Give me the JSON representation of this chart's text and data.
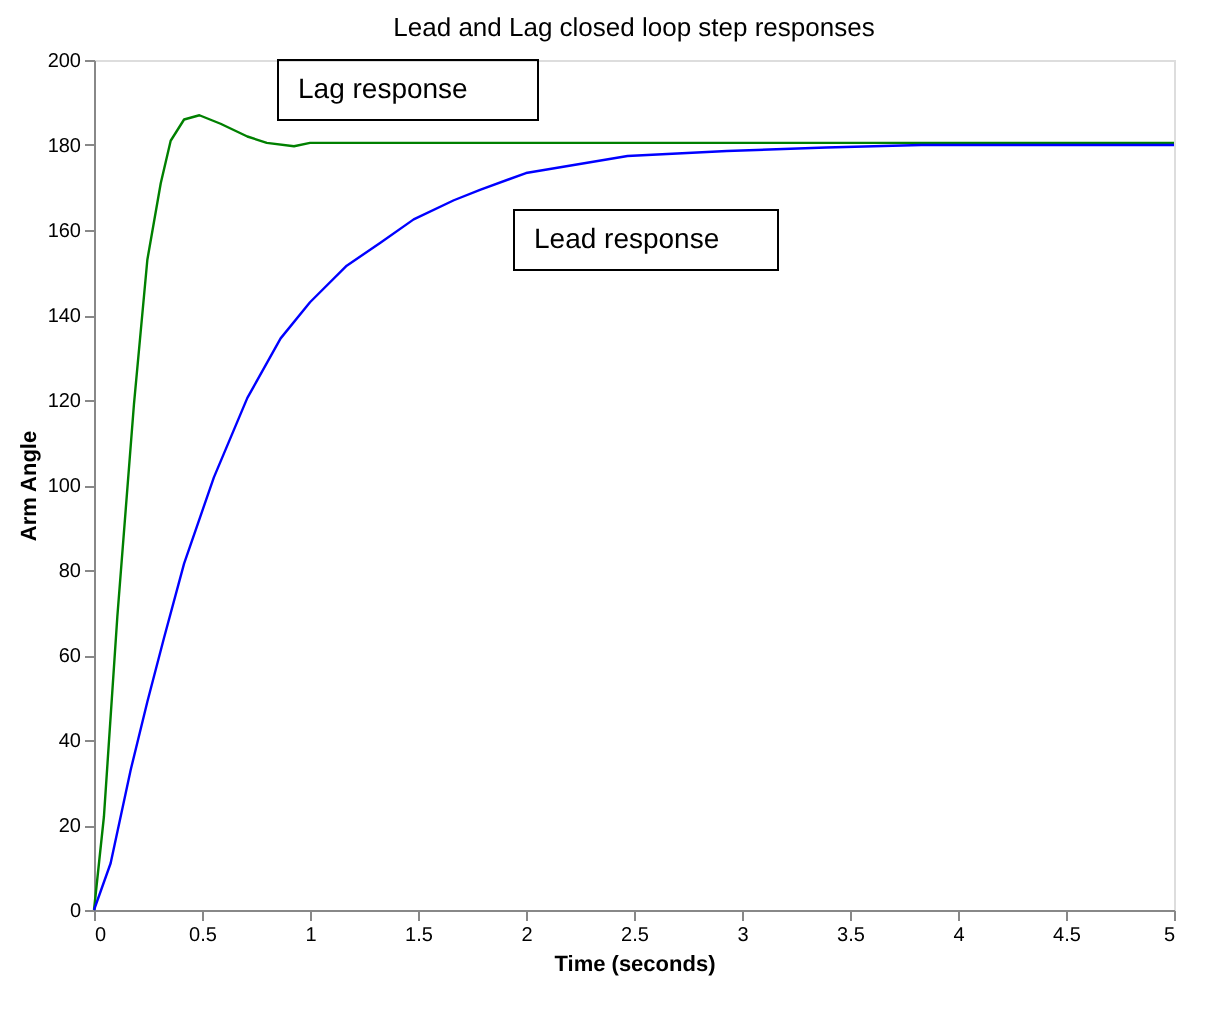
{
  "chart_data": {
    "type": "line",
    "title": "Lead and Lag closed loop step responses",
    "xlabel": "Time (seconds)",
    "ylabel": "Arm Angle",
    "xlim": [
      0,
      5
    ],
    "xticks": [
      0,
      0.5,
      1,
      1.5,
      2,
      2.5,
      3,
      3.5,
      4,
      4.5,
      5
    ],
    "ylim": [
      0,
      200
    ],
    "yticks": [
      0,
      20,
      40,
      60,
      80,
      100,
      120,
      140,
      160,
      180,
      200
    ],
    "grid": false,
    "legend": false,
    "marker": "none",
    "line_style": "solid",
    "series": [
      {
        "name": "Lag response",
        "color": "#008000",
        "x": [
          0,
          0.046,
          0.108,
          0.185,
          0.247,
          0.309,
          0.355,
          0.417,
          0.488,
          0.586,
          0.71,
          0.8,
          0.926,
          1.0,
          1.5,
          2,
          3,
          4,
          5
        ],
        "values": [
          0,
          22,
          69,
          119,
          153,
          171,
          181,
          186,
          187,
          185,
          182,
          180.5,
          179.7,
          180.5,
          180.5,
          180.5,
          180.5,
          180.5,
          180.5
        ]
      },
      {
        "name": "Lead response",
        "color": "#0000ff",
        "x": [
          0,
          0.077,
          0.17,
          0.247,
          0.324,
          0.417,
          0.555,
          0.71,
          0.864,
          1.0,
          1.17,
          1.326,
          1.48,
          1.666,
          1.79,
          2.0,
          2.47,
          2.93,
          3.39,
          3.83,
          5
        ],
        "values": [
          0,
          11,
          33,
          49,
          64,
          81.5,
          101.8,
          120.5,
          134.5,
          143,
          151.6,
          157,
          162.5,
          167,
          169.5,
          173.4,
          177.4,
          178.6,
          179.4,
          180,
          180
        ]
      }
    ]
  }
}
